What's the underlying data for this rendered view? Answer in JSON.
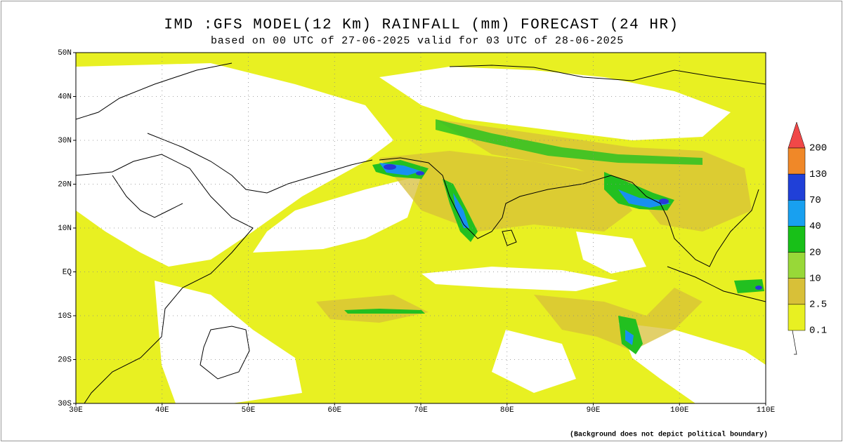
{
  "header": {
    "title": "IMD :GFS MODEL(12 Km) RAINFALL (mm) FORECAST (24 HR)",
    "subtitle": "based on 00 UTC of 27-06-2025 valid for 03 UTC of 28-06-2025"
  },
  "map": {
    "lat_labels": [
      "50N",
      "40N",
      "30N",
      "20N",
      "10N",
      "EQ",
      "10S",
      "20S",
      "30S"
    ],
    "lon_labels": [
      "30E",
      "40E",
      "50E",
      "60E",
      "70E",
      "80E",
      "90E",
      "100E",
      "110E"
    ]
  },
  "legend": {
    "labels": [
      "200",
      "130",
      "70",
      "40",
      "20",
      "10",
      "2.5",
      "0.1"
    ],
    "colors": [
      "#f08828",
      "#2040d8",
      "#18a0f0",
      "#18c018",
      "#98d838",
      "#d8c038",
      "#e8f022"
    ]
  },
  "footnote": "(Background does not depict political boundary)"
}
